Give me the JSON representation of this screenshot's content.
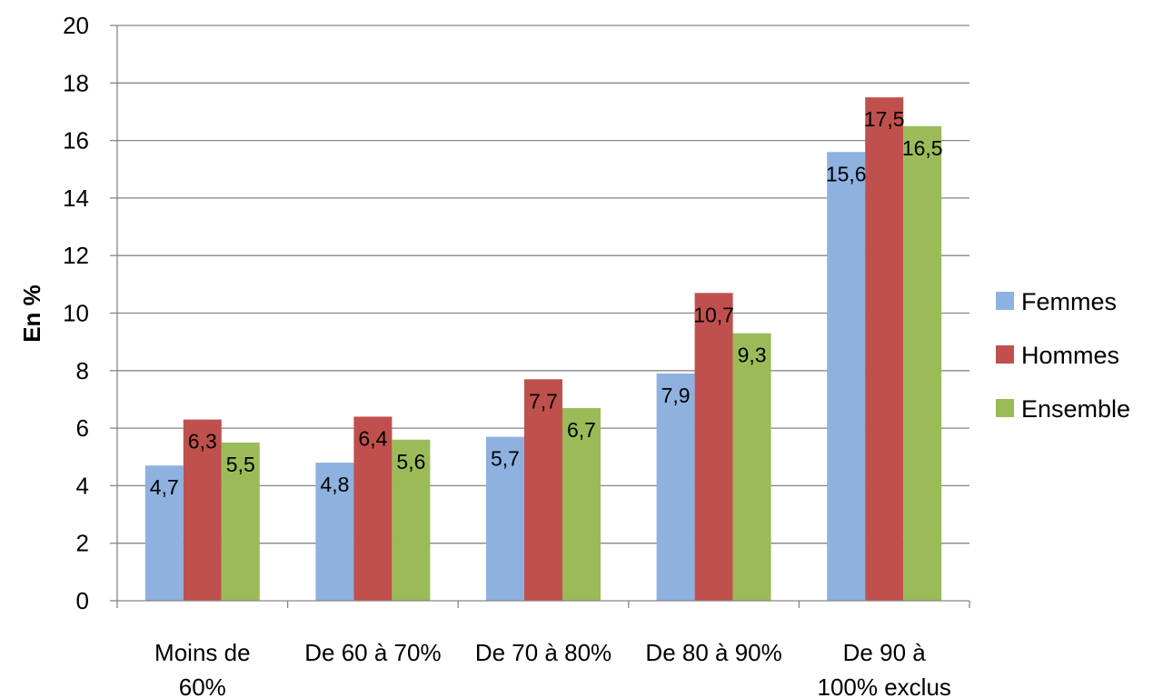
{
  "chart_data": {
    "type": "bar",
    "ylabel": "En %",
    "ylim": [
      0,
      20
    ],
    "y_ticks": [
      0,
      2,
      4,
      6,
      8,
      10,
      12,
      14,
      16,
      18,
      20
    ],
    "grid": true,
    "legend_position": "right",
    "categories": [
      [
        "Moins de",
        "60%"
      ],
      [
        "De 60 à 70%"
      ],
      [
        "De 70 à 80%"
      ],
      [
        "De 80 à 90%"
      ],
      [
        "De 90 à",
        "100% exclus"
      ]
    ],
    "series": [
      {
        "name": "Femmes",
        "color": "#8EB1E0",
        "values": [
          4.7,
          4.8,
          5.7,
          7.9,
          15.6
        ],
        "labels": [
          "4,7",
          "4,8",
          "5,7",
          "7,9",
          "15,6"
        ]
      },
      {
        "name": "Hommes",
        "color": "#C0504D",
        "values": [
          6.3,
          6.4,
          7.7,
          10.7,
          17.5
        ],
        "labels": [
          "6,3",
          "6,4",
          "7,7",
          "10,7",
          "17,5"
        ]
      },
      {
        "name": "Ensemble",
        "color": "#9BBB59",
        "values": [
          5.5,
          5.6,
          6.7,
          9.3,
          16.5
        ],
        "labels": [
          "5,5",
          "5,6",
          "6,7",
          "9,3",
          "16,5"
        ]
      }
    ]
  }
}
